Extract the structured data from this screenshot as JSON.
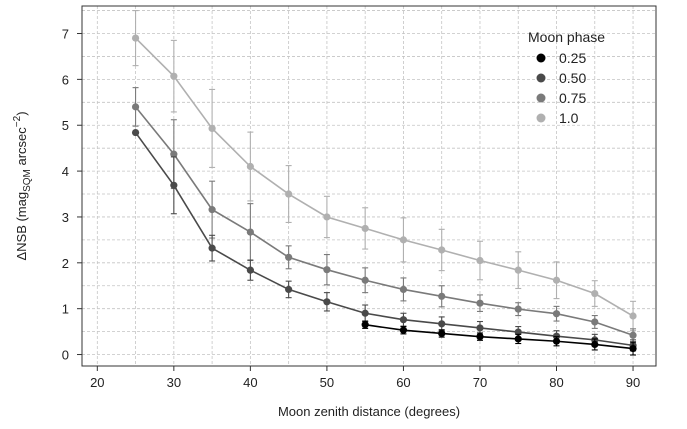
{
  "chart_data": {
    "type": "line",
    "xlabel": "Moon zenith distance (degrees)",
    "ylabel": {
      "prefix": "ΔNSB  (mag",
      "sub": "SQM",
      "mid": "  arcsec",
      "sup": "−2",
      "suffix": ")"
    },
    "xlim": [
      18,
      93
    ],
    "ylim": [
      -0.25,
      7.6
    ],
    "xticks": [
      20,
      30,
      40,
      50,
      60,
      70,
      80,
      90
    ],
    "yticks": [
      0,
      1,
      2,
      3,
      4,
      5,
      6,
      7
    ],
    "grid": true,
    "legend": {
      "title": "Moon phase",
      "placement": "top-right"
    },
    "series": [
      {
        "name": "0.25",
        "color": "#000000",
        "x": [
          55,
          60,
          65,
          70,
          75,
          80,
          85,
          90
        ],
        "y": [
          0.65,
          0.53,
          0.46,
          0.39,
          0.34,
          0.29,
          0.22,
          0.13
        ],
        "err": [
          0.08,
          0.08,
          0.08,
          0.08,
          0.1,
          0.1,
          0.12,
          0.14
        ]
      },
      {
        "name": "0.50",
        "color": "#4a4a4a",
        "x": [
          25,
          30,
          35,
          40,
          45,
          50,
          55,
          60,
          65,
          70,
          75,
          80,
          85,
          90
        ],
        "y": [
          4.84,
          3.69,
          2.32,
          1.84,
          1.42,
          1.15,
          0.9,
          0.76,
          0.67,
          0.58,
          0.49,
          0.4,
          0.32,
          0.2
        ],
        "err": [
          0.0,
          0.62,
          0.28,
          0.22,
          0.18,
          0.2,
          0.18,
          0.14,
          0.15,
          0.14,
          0.12,
          0.12,
          0.12,
          0.12
        ]
      },
      {
        "name": "0.75",
        "color": "#7a7a7a",
        "x": [
          25,
          30,
          35,
          40,
          45,
          50,
          55,
          60,
          65,
          70,
          75,
          80,
          85,
          90
        ],
        "y": [
          5.4,
          4.37,
          3.16,
          2.67,
          2.12,
          1.85,
          1.62,
          1.42,
          1.27,
          1.12,
          0.99,
          0.89,
          0.71,
          0.42
        ],
        "err": [
          0.42,
          0.75,
          0.62,
          0.62,
          0.25,
          0.33,
          0.27,
          0.25,
          0.23,
          0.18,
          0.14,
          0.16,
          0.14,
          0.14
        ]
      },
      {
        "name": "1.0",
        "color": "#b0b0b0",
        "x": [
          25,
          30,
          35,
          40,
          45,
          50,
          55,
          60,
          65,
          70,
          75,
          80,
          85,
          90
        ],
        "y": [
          6.9,
          6.07,
          4.93,
          4.1,
          3.5,
          3.0,
          2.75,
          2.5,
          2.28,
          2.05,
          1.84,
          1.62,
          1.33,
          0.84
        ],
        "err": [
          0.6,
          0.78,
          0.85,
          0.75,
          0.62,
          0.45,
          0.45,
          0.48,
          0.45,
          0.42,
          0.4,
          0.4,
          0.28,
          0.32
        ]
      }
    ]
  }
}
